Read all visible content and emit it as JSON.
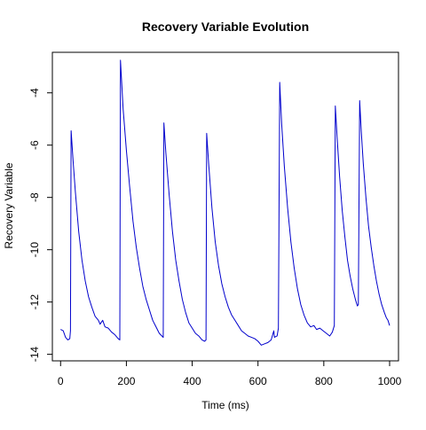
{
  "chart_data": {
    "type": "line",
    "title": "Recovery Variable Evolution",
    "xlabel": "Time (ms)",
    "ylabel": "Recovery Variable",
    "xlim": [
      -25,
      1027
    ],
    "ylim": [
      -14.25,
      -2.45
    ],
    "x_ticks": [
      0,
      200,
      400,
      600,
      800,
      1000
    ],
    "y_ticks": [
      -14,
      -12,
      -10,
      -8,
      -6,
      -4
    ],
    "x_tick_labels": [
      "0",
      "200",
      "400",
      "600",
      "800",
      "1000"
    ],
    "y_tick_labels": [
      "-14",
      "-12",
      "-10",
      "-8",
      "-6",
      "-4"
    ],
    "grid": false,
    "series": [
      {
        "color": "#0000cc",
        "points": [
          [
            0,
            -13.05
          ],
          [
            8,
            -13.1
          ],
          [
            15,
            -13.35
          ],
          [
            22,
            -13.45
          ],
          [
            28,
            -13.4
          ],
          [
            30,
            -13.1
          ],
          [
            32,
            -5.45
          ],
          [
            38,
            -6.6
          ],
          [
            45,
            -7.8
          ],
          [
            55,
            -9.3
          ],
          [
            65,
            -10.4
          ],
          [
            75,
            -11.2
          ],
          [
            85,
            -11.8
          ],
          [
            95,
            -12.2
          ],
          [
            105,
            -12.55
          ],
          [
            115,
            -12.7
          ],
          [
            120,
            -12.85
          ],
          [
            128,
            -12.7
          ],
          [
            135,
            -12.95
          ],
          [
            145,
            -13.0
          ],
          [
            155,
            -13.15
          ],
          [
            165,
            -13.25
          ],
          [
            175,
            -13.4
          ],
          [
            180,
            -13.45
          ],
          [
            182,
            -2.75
          ],
          [
            190,
            -4.6
          ],
          [
            200,
            -6.2
          ],
          [
            210,
            -7.6
          ],
          [
            220,
            -8.9
          ],
          [
            230,
            -9.9
          ],
          [
            240,
            -10.7
          ],
          [
            250,
            -11.4
          ],
          [
            260,
            -11.9
          ],
          [
            270,
            -12.3
          ],
          [
            280,
            -12.7
          ],
          [
            290,
            -12.95
          ],
          [
            300,
            -13.2
          ],
          [
            308,
            -13.3
          ],
          [
            312,
            -13.35
          ],
          [
            314,
            -5.15
          ],
          [
            320,
            -6.3
          ],
          [
            330,
            -7.9
          ],
          [
            340,
            -9.3
          ],
          [
            350,
            -10.4
          ],
          [
            360,
            -11.2
          ],
          [
            370,
            -11.9
          ],
          [
            380,
            -12.4
          ],
          [
            390,
            -12.8
          ],
          [
            400,
            -13.0
          ],
          [
            410,
            -13.2
          ],
          [
            420,
            -13.3
          ],
          [
            430,
            -13.45
          ],
          [
            438,
            -13.5
          ],
          [
            442,
            -13.45
          ],
          [
            444,
            -5.55
          ],
          [
            450,
            -6.7
          ],
          [
            460,
            -8.4
          ],
          [
            470,
            -9.7
          ],
          [
            480,
            -10.6
          ],
          [
            490,
            -11.3
          ],
          [
            500,
            -11.8
          ],
          [
            510,
            -12.2
          ],
          [
            520,
            -12.5
          ],
          [
            530,
            -12.7
          ],
          [
            540,
            -12.9
          ],
          [
            550,
            -13.1
          ],
          [
            560,
            -13.2
          ],
          [
            570,
            -13.3
          ],
          [
            580,
            -13.35
          ],
          [
            590,
            -13.4
          ],
          [
            600,
            -13.5
          ],
          [
            610,
            -13.65
          ],
          [
            620,
            -13.6
          ],
          [
            630,
            -13.55
          ],
          [
            640,
            -13.45
          ],
          [
            648,
            -13.1
          ],
          [
            650,
            -13.35
          ],
          [
            658,
            -13.3
          ],
          [
            662,
            -13.0
          ],
          [
            666,
            -3.6
          ],
          [
            672,
            -5.2
          ],
          [
            680,
            -6.8
          ],
          [
            690,
            -8.4
          ],
          [
            700,
            -9.7
          ],
          [
            710,
            -10.7
          ],
          [
            720,
            -11.5
          ],
          [
            730,
            -12.1
          ],
          [
            740,
            -12.5
          ],
          [
            750,
            -12.8
          ],
          [
            760,
            -12.95
          ],
          [
            770,
            -12.9
          ],
          [
            778,
            -13.05
          ],
          [
            788,
            -13.0
          ],
          [
            798,
            -13.1
          ],
          [
            808,
            -13.2
          ],
          [
            818,
            -13.3
          ],
          [
            826,
            -13.15
          ],
          [
            832,
            -12.9
          ],
          [
            835,
            -4.5
          ],
          [
            840,
            -5.6
          ],
          [
            848,
            -7.2
          ],
          [
            856,
            -8.5
          ],
          [
            864,
            -9.5
          ],
          [
            872,
            -10.4
          ],
          [
            880,
            -11.0
          ],
          [
            888,
            -11.5
          ],
          [
            896,
            -11.9
          ],
          [
            902,
            -12.15
          ],
          [
            905,
            -12.1
          ],
          [
            909,
            -4.3
          ],
          [
            914,
            -5.5
          ],
          [
            920,
            -6.7
          ],
          [
            928,
            -8.0
          ],
          [
            936,
            -9.1
          ],
          [
            944,
            -9.9
          ],
          [
            952,
            -10.6
          ],
          [
            960,
            -11.2
          ],
          [
            968,
            -11.7
          ],
          [
            976,
            -12.1
          ],
          [
            984,
            -12.4
          ],
          [
            990,
            -12.6
          ],
          [
            995,
            -12.7
          ],
          [
            1000,
            -12.9
          ]
        ]
      }
    ]
  }
}
